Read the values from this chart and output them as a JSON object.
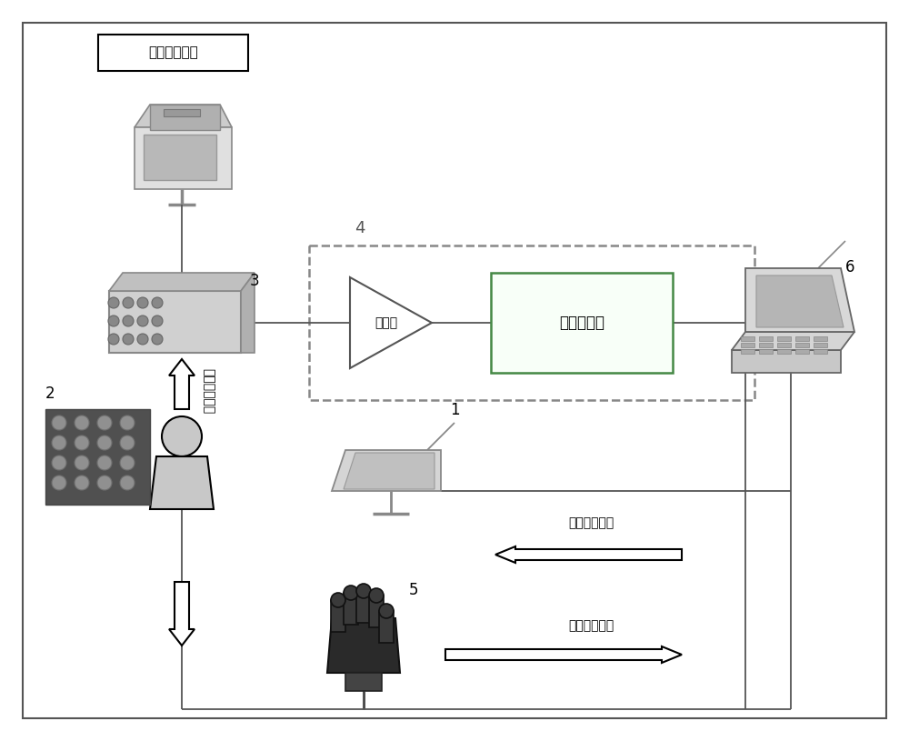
{
  "bg_color": "#ffffff",
  "label_hospital": "医院记录系统",
  "label_amplifier": "放大器",
  "label_signal_processor": "信号处理器",
  "label_ecog_signal": "皮层脑电信号",
  "label_terminal_control": "终端控制显示",
  "label_hand_motion": "手部运动信号",
  "num_1": "1",
  "num_2": "2",
  "num_3": "3",
  "num_4": "4",
  "num_5": "5",
  "num_6": "6",
  "layout": {
    "fig_w": 10.0,
    "fig_h": 8.15,
    "dpi": 100
  }
}
